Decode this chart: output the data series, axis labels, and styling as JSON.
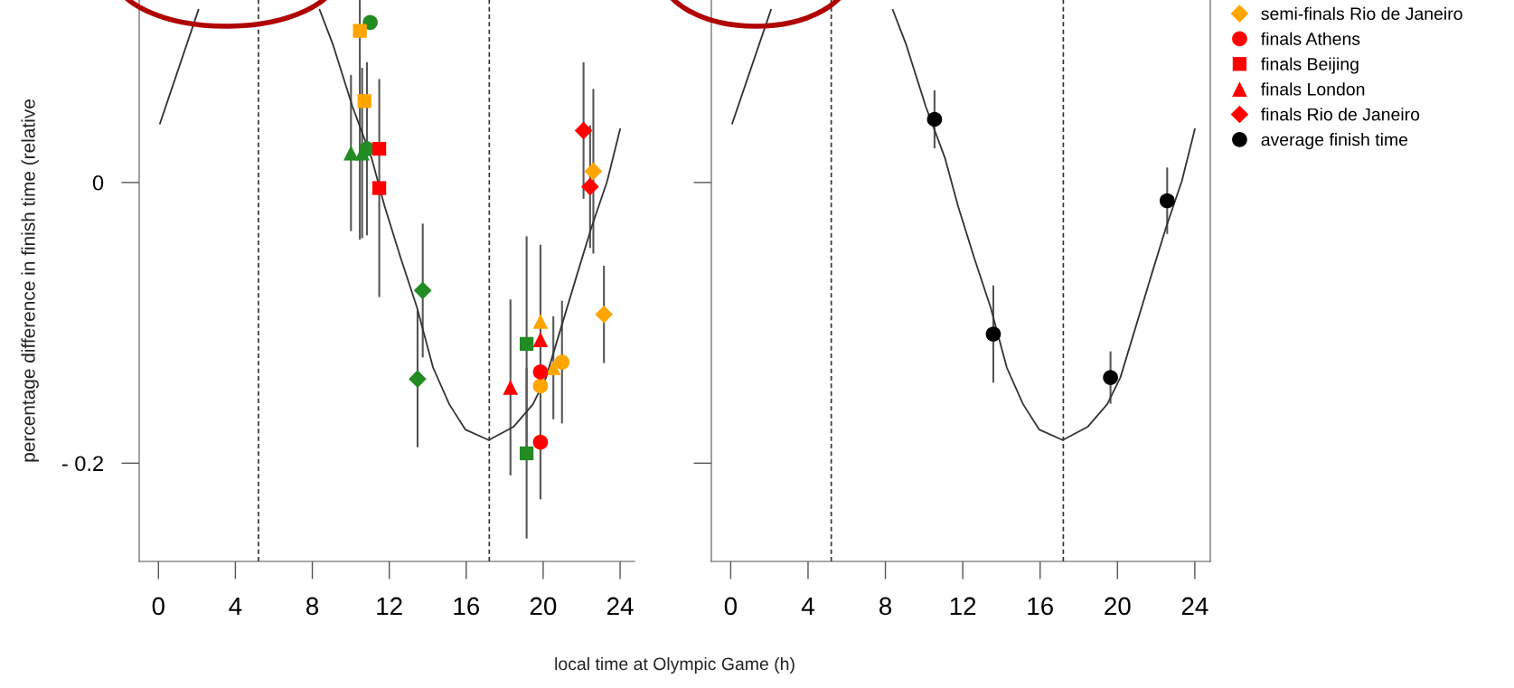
{
  "chart_data": [
    {
      "type": "scatter",
      "xlabel": "local time at Olympic Game (h)",
      "ylabel": "percentage difference in finish time (relative",
      "xlim": [
        -1,
        24.75
      ],
      "ylim": [
        -0.27,
        0.13
      ],
      "xticks": [
        0,
        4,
        8,
        12,
        16,
        20,
        24
      ],
      "yticks": [
        0,
        {
          "value": -0.2,
          "label": "- 0.2"
        }
      ],
      "ref_lines": [
        {
          "axis": "x",
          "value": 5.2,
          "color": "#333333",
          "line_style": "dashed"
        },
        {
          "axis": "x",
          "value": 17.2,
          "color": "#333333",
          "line_style": "dashed"
        }
      ],
      "grid": false,
      "legend": "top right",
      "series": [
        {
          "type": "line",
          "color": "#333333",
          "marker": "none",
          "x": [
            0.08,
            2.08,
            null,
            8.38,
            9.08,
            10.09,
            11.09,
            11.76,
            12.6,
            13.44,
            14.28,
            15.12,
            15.95,
            17.17,
            18.47,
            19.47,
            20.15,
            21.82,
            22.49,
            23.33,
            24.0
          ],
          "values": [
            0.042,
            0.123,
            null,
            0.123,
            0.098,
            0.054,
            0.017,
            -0.017,
            -0.054,
            -0.089,
            -0.132,
            -0.158,
            -0.176,
            -0.1835,
            -0.174,
            -0.158,
            -0.139,
            -0.063,
            -0.033,
            0.001,
            0.038
          ]
        },
        {
          "color": "#228b22",
          "marker": "circle",
          "x": [
            11.01,
            10.84
          ],
          "values": [
            0.114,
            0.024
          ],
          "errors": [
            null,
            0.061
          ]
        },
        {
          "color": "#228b22",
          "marker": "square",
          "x": [
            19.14,
            19.14
          ],
          "values": [
            -0.115,
            -0.193
          ],
          "errors": [
            0.076,
            0.06
          ]
        },
        {
          "color": "#228b22",
          "marker": "triangle",
          "x": [
            10.01,
            10.59
          ],
          "values": [
            0.021,
            0.021
          ],
          "errors": [
            0.055,
            0.06
          ]
        },
        {
          "color": "#228b22",
          "marker": "diamond",
          "x": [
            13.74,
            13.47
          ],
          "values": [
            -0.077,
            -0.14
          ],
          "errors": [
            0.047,
            0.048
          ]
        },
        {
          "color": "#ffa500",
          "marker": "circle",
          "x": [
            19.86,
            20.98
          ],
          "values": [
            -0.145,
            -0.128
          ],
          "errors": [
            null,
            0.043
          ]
        },
        {
          "color": "#ffa500",
          "marker": "square",
          "x": [
            10.47,
            10.71
          ],
          "values": [
            0.108,
            0.058
          ],
          "errors": [
            [
              -0.04,
              0.13
            ],
            null
          ]
        },
        {
          "color": "#ffa500",
          "marker": "triangle",
          "x": [
            19.86,
            20.53
          ],
          "values": [
            -0.099,
            -0.132
          ],
          "errors": [
            null,
            0.036
          ]
        },
        {
          "name": "semi-finals Rio de Janeiro",
          "color": "#ffa500",
          "marker": "diamond",
          "x": [
            23.16,
            22.61
          ],
          "values": [
            -0.094,
            0.008
          ],
          "errors": [
            0.034,
            0.058
          ]
        },
        {
          "name": "finals Athens",
          "color": "#ff0000",
          "marker": "circle",
          "x": [
            19.86,
            19.86
          ],
          "values": [
            -0.135,
            -0.185
          ],
          "errors": [
            0.09,
            null
          ]
        },
        {
          "name": "finals Beijing",
          "color": "#ff0000",
          "marker": "square",
          "x": [
            11.48,
            11.48
          ],
          "values": [
            0.024,
            -0.004
          ],
          "errors": [
            null,
            0.077
          ]
        },
        {
          "name": "finals London",
          "color": "#ff0000",
          "marker": "triangle",
          "x": [
            19.86,
            18.3
          ],
          "values": [
            -0.112,
            -0.146
          ],
          "errors": [
            null,
            0.062
          ]
        },
        {
          "name": "finals Rio de Janeiro",
          "color": "#ff0000",
          "marker": "diamond",
          "x": [
            22.1,
            22.44
          ],
          "values": [
            0.037,
            -0.003
          ],
          "errors": [
            0.048,
            0.043
          ]
        }
      ]
    },
    {
      "type": "scatter",
      "xlim": [
        -1,
        24.8
      ],
      "ylim": [
        -0.27,
        0.13
      ],
      "xticks": [
        0,
        4,
        8,
        12,
        16,
        20,
        24
      ],
      "yticks": [
        0,
        -0.2
      ],
      "tick_labels": "x",
      "ref_lines": [
        {
          "axis": "x",
          "value": 5.2,
          "color": "#333333",
          "line_style": "dashed"
        },
        {
          "axis": "x",
          "value": 17.2,
          "color": "#333333",
          "line_style": "dashed"
        }
      ],
      "grid": false,
      "legend": "top right",
      "series": [
        {
          "type": "line",
          "color": "#333333",
          "marker": "none",
          "x": [
            0.08,
            2.08,
            null,
            8.38,
            9.08,
            10.09,
            11.09,
            11.76,
            12.6,
            13.44,
            14.28,
            15.12,
            15.95,
            17.17,
            18.47,
            19.47,
            20.15,
            21.82,
            22.49,
            23.33,
            24.0
          ],
          "values": [
            0.042,
            0.123,
            null,
            0.123,
            0.098,
            0.054,
            0.017,
            -0.017,
            -0.054,
            -0.089,
            -0.132,
            -0.158,
            -0.176,
            -0.1835,
            -0.174,
            -0.158,
            -0.139,
            -0.063,
            -0.033,
            0.001,
            0.038
          ]
        },
        {
          "name": "average finish time",
          "color": "#000000",
          "marker": "circle",
          "x": [
            10.54,
            13.58,
            19.64,
            22.57
          ],
          "values": [
            0.045,
            -0.108,
            -0.139,
            -0.013
          ],
          "errors": [
            0.02,
            0.034,
            0.018,
            0.023
          ]
        }
      ]
    }
  ]
}
